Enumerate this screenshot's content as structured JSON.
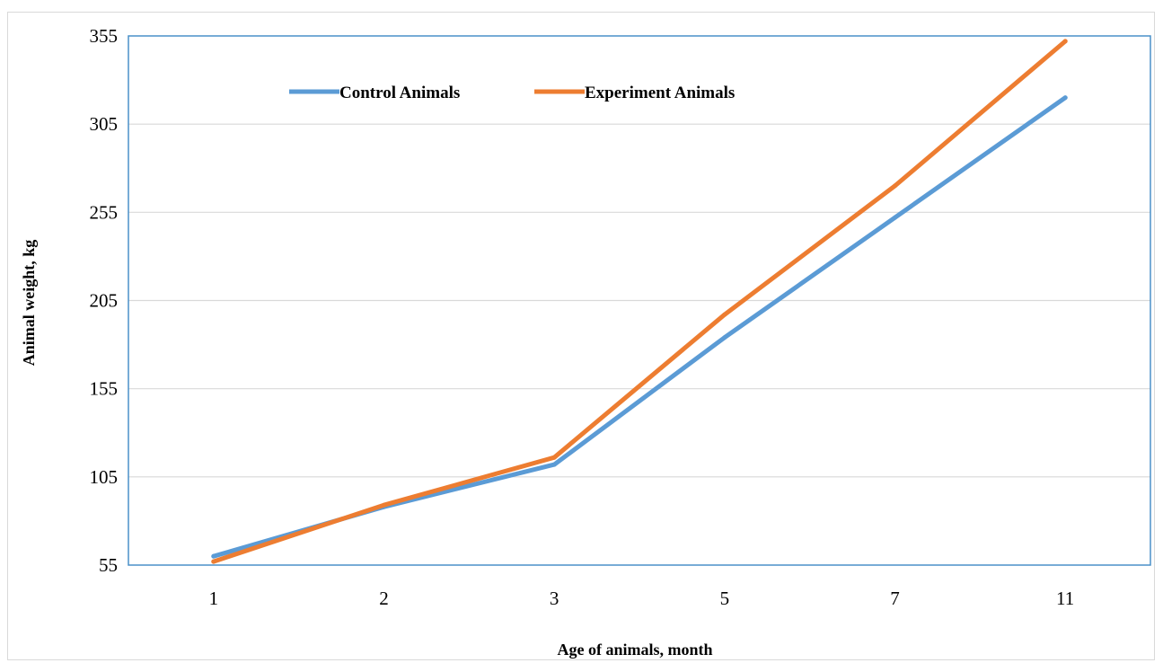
{
  "chart_data": {
    "type": "line",
    "title": "",
    "xlabel": "Age of animals, month",
    "ylabel": "Animal weight, kg",
    "categories": [
      "1",
      "2",
      "3",
      "5",
      "7",
      "11"
    ],
    "ylim": [
      55,
      355
    ],
    "yticks": [
      55,
      105,
      155,
      205,
      255,
      305,
      355
    ],
    "grid": true,
    "legend_position": "top-left",
    "series": [
      {
        "name": "Control Animals",
        "color": "#5b9bd5",
        "values": [
          60,
          88,
          112,
          184,
          252,
          320
        ]
      },
      {
        "name": "Experiment Animals",
        "color": "#ed7d31",
        "values": [
          57,
          89,
          116,
          197,
          270,
          352
        ]
      }
    ]
  }
}
